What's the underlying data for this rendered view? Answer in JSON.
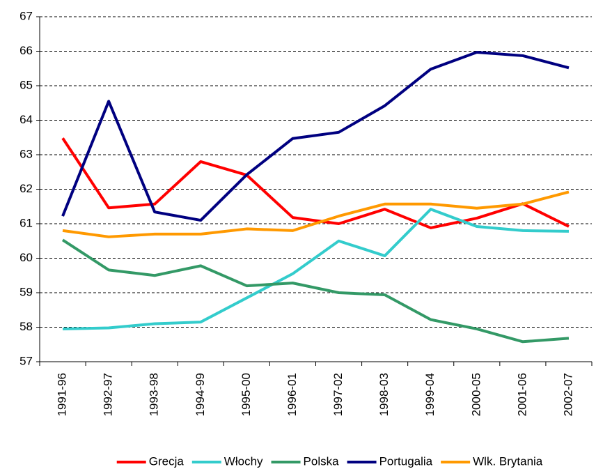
{
  "chart_data": {
    "type": "line",
    "categories": [
      "1991-96",
      "1992-97",
      "1993-98",
      "1994-99",
      "1995-00",
      "1996-01",
      "1997-02",
      "1998-03",
      "1999-04",
      "2000-05",
      "2001-06",
      "2002-07"
    ],
    "series": [
      {
        "name": "Grecja",
        "color": "#ff0000",
        "values": [
          63.48,
          61.46,
          61.57,
          62.8,
          62.41,
          61.18,
          61.0,
          61.42,
          60.88,
          61.16,
          61.58,
          60.92
        ]
      },
      {
        "name": "Włochy",
        "color": "#33cccc",
        "values": [
          57.95,
          57.98,
          58.1,
          58.15,
          58.85,
          59.55,
          60.5,
          60.07,
          61.42,
          60.92,
          60.8,
          60.78
        ]
      },
      {
        "name": "Polska",
        "color": "#339966",
        "values": [
          60.53,
          59.66,
          59.5,
          59.78,
          59.2,
          59.28,
          59.0,
          58.94,
          58.22,
          57.95,
          57.58,
          57.68
        ]
      },
      {
        "name": "Portugalia",
        "color": "#000080",
        "values": [
          61.22,
          64.55,
          61.34,
          61.1,
          62.42,
          63.47,
          63.65,
          64.42,
          65.48,
          65.97,
          65.87,
          65.52
        ]
      },
      {
        "name": "Wlk. Brytania",
        "color": "#ff9900",
        "values": [
          60.8,
          60.62,
          60.7,
          60.7,
          60.85,
          60.8,
          61.22,
          61.57,
          61.57,
          61.45,
          61.57,
          61.92
        ]
      }
    ],
    "ylim": [
      57,
      67
    ],
    "yticks": [
      57,
      58,
      59,
      60,
      61,
      62,
      63,
      64,
      65,
      66,
      67
    ],
    "grid": true
  }
}
